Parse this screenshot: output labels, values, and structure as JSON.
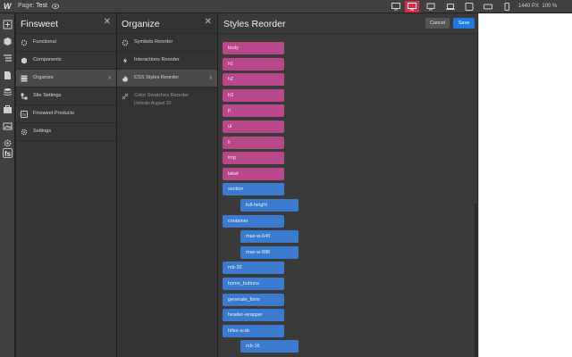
{
  "topbar": {
    "logo": "W",
    "page_prefix": "Page:",
    "page_name": "Test",
    "width_readout": "1440 PX",
    "zoom_readout": "100 %"
  },
  "panel1": {
    "title": "Finsweet",
    "items": [
      {
        "label": "Functional",
        "icon": "gear-icon"
      },
      {
        "label": "Components",
        "icon": "cube-icon"
      },
      {
        "label": "Organize",
        "icon": "layers-icon",
        "selected": true
      },
      {
        "label": "Site Settings",
        "icon": "sitemap-icon"
      },
      {
        "label": "Finsweet Products",
        "icon": "fs-icon"
      },
      {
        "label": "Settings",
        "icon": "settings-icon"
      }
    ]
  },
  "panel2": {
    "title": "Organize",
    "items": [
      {
        "label": "Symbols Reorder",
        "icon": "gear-icon"
      },
      {
        "label": "Interactions Reorder",
        "icon": "bolt-icon"
      },
      {
        "label": "CSS Styles Reorder",
        "icon": "paint-icon",
        "selected": true
      },
      {
        "label": "Color Swatches Reorder",
        "sub": "Unlocks August 10",
        "icon": "swatch-icon",
        "dim": true
      }
    ]
  },
  "main": {
    "title": "Styles Reorder",
    "cancel_label": "Cancel",
    "save_label": "Save",
    "chips": [
      {
        "label": "body",
        "kind": "tag",
        "indent": 0
      },
      {
        "label": "h1",
        "kind": "tag",
        "indent": 0
      },
      {
        "label": "h2",
        "kind": "tag",
        "indent": 0
      },
      {
        "label": "h3",
        "kind": "tag",
        "indent": 0
      },
      {
        "label": "p",
        "kind": "tag",
        "indent": 0
      },
      {
        "label": "ul",
        "kind": "tag",
        "indent": 0
      },
      {
        "label": "li",
        "kind": "tag",
        "indent": 0
      },
      {
        "label": "img",
        "kind": "tag",
        "indent": 0
      },
      {
        "label": "label",
        "kind": "tag",
        "indent": 0
      },
      {
        "label": "section",
        "kind": "cls",
        "indent": 0
      },
      {
        "label": "full-height",
        "kind": "cls",
        "indent": 1
      },
      {
        "label": "container",
        "kind": "cls",
        "indent": 0
      },
      {
        "label": "max-w-640",
        "kind": "cls",
        "indent": 1
      },
      {
        "label": "max-w-896",
        "kind": "cls",
        "indent": 1
      },
      {
        "label": "mb-32",
        "kind": "cls",
        "indent": 0
      },
      {
        "label": "home_buttons",
        "kind": "cls",
        "indent": 0
      },
      {
        "label": "generate_form",
        "kind": "cls",
        "indent": 0
      },
      {
        "label": "header-wrapper",
        "kind": "cls",
        "indent": 0
      },
      {
        "label": "hflex-a-sb",
        "kind": "cls",
        "indent": 0
      },
      {
        "label": "mb-16",
        "kind": "cls",
        "indent": 1
      }
    ]
  },
  "colors": {
    "tag_chip": "#b8488a",
    "class_chip": "#3a7bd0",
    "save_button": "#1f78e0",
    "active_device": "#d6304a"
  }
}
